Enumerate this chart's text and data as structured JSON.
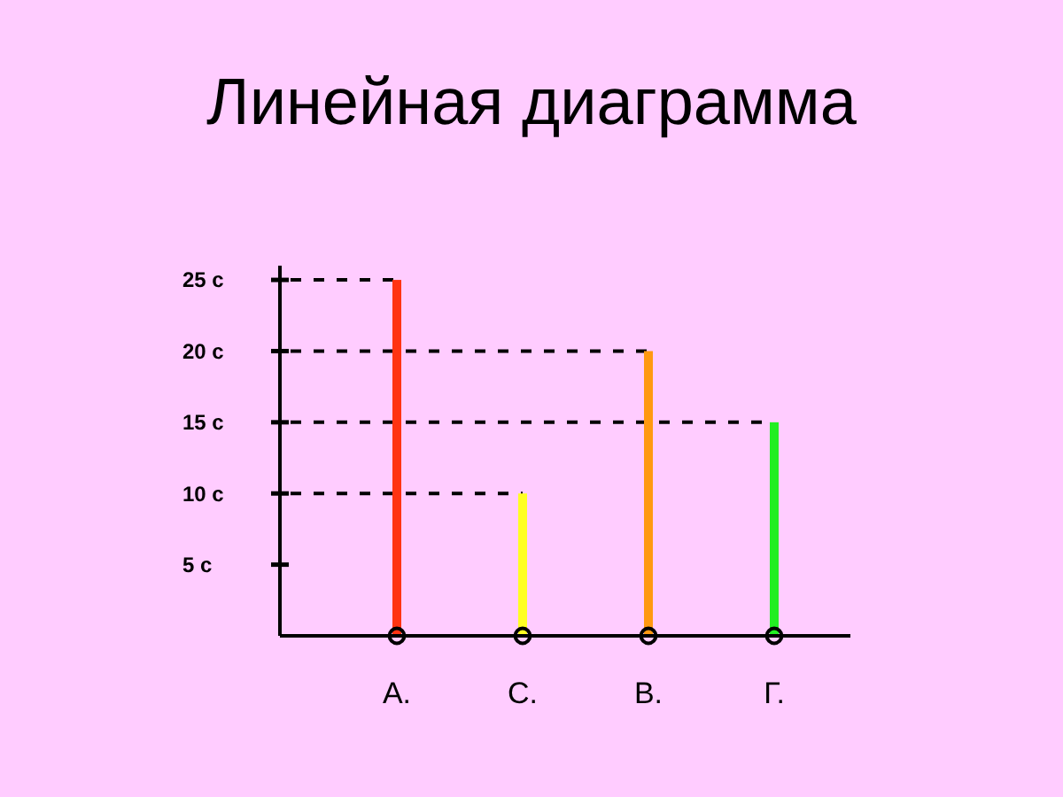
{
  "chart_data": {
    "type": "bar",
    "title": "Линейная диаграмма",
    "categories": [
      "А.",
      "С.",
      "В.",
      "Г."
    ],
    "values": [
      25,
      10,
      20,
      15
    ],
    "colors": [
      "#ff3311",
      "#ffff22",
      "#ff9911",
      "#22ee22"
    ],
    "ylim": [
      0,
      26
    ],
    "yticks": [
      {
        "value": 5,
        "label": "5 с"
      },
      {
        "value": 10,
        "label": "10 с"
      },
      {
        "value": 15,
        "label": "15 с"
      },
      {
        "value": 20,
        "label": "20 с"
      },
      {
        "value": 25,
        "label": "25 с"
      }
    ],
    "ref_lines": [
      {
        "axis": "y",
        "value": 25,
        "color": "#000000",
        "line_style": "dashed"
      },
      {
        "axis": "y",
        "value": 20,
        "color": "#000000",
        "line_style": "dashed"
      },
      {
        "axis": "y",
        "value": 15,
        "color": "#000000",
        "line_style": "dashed"
      },
      {
        "axis": "y",
        "value": 10,
        "color": "#000000",
        "line_style": "dashed"
      }
    ]
  }
}
